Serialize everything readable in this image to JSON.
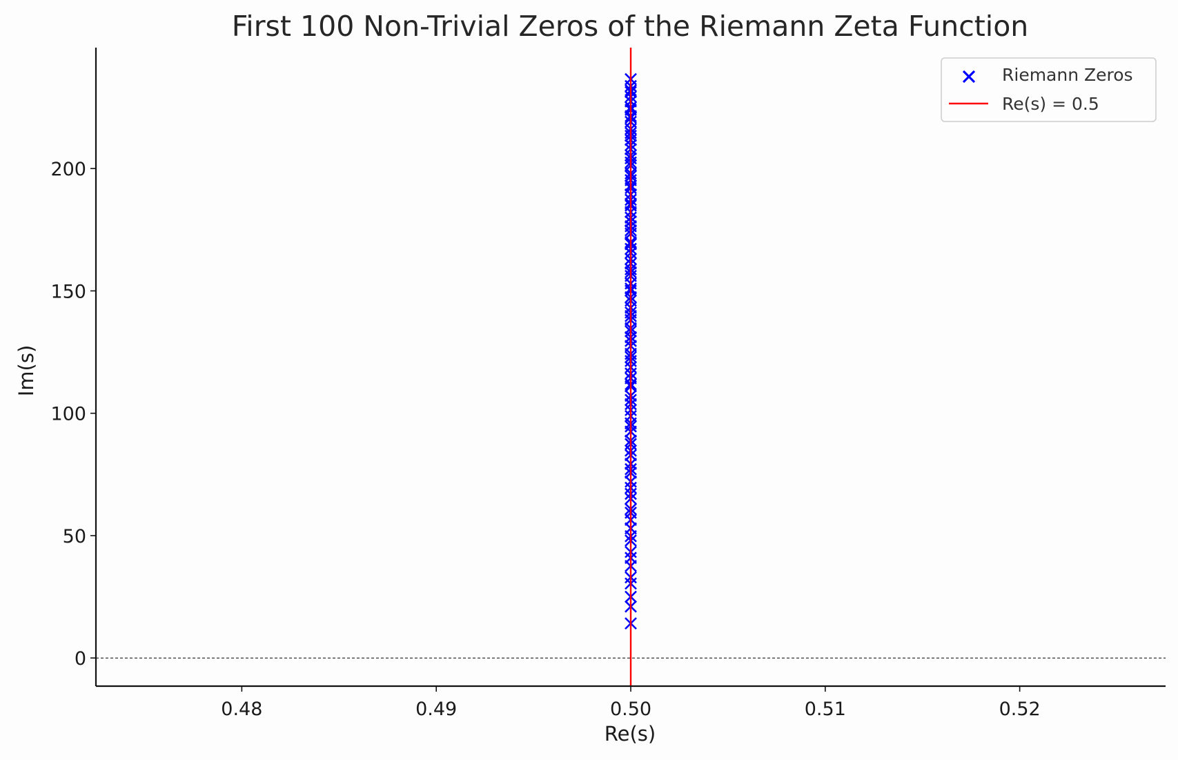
{
  "chart_data": {
    "type": "scatter",
    "title": "First 100 Non-Trivial Zeros of the Riemann Zeta Function",
    "xlabel": "Re(s)",
    "ylabel": "Im(s)",
    "xlim": [
      0.4725,
      0.5275
    ],
    "ylim": [
      -11.5,
      249.4
    ],
    "xticks": [
      0.48,
      0.49,
      0.5,
      0.51,
      0.52
    ],
    "xtick_labels": [
      "0.48",
      "0.49",
      "0.50",
      "0.51",
      "0.52"
    ],
    "yticks": [
      0,
      50,
      100,
      150,
      200
    ],
    "ytick_labels": [
      "0",
      "50",
      "100",
      "150",
      "200"
    ],
    "grid": false,
    "legend_position": "top-right",
    "series": [
      {
        "name": "Riemann Zeros",
        "color": "#0000ff",
        "marker": "x",
        "x_value": 0.5,
        "y": [
          14.135,
          21.022,
          25.011,
          30.425,
          32.935,
          37.586,
          40.919,
          43.327,
          48.005,
          49.774,
          52.97,
          56.446,
          59.347,
          60.832,
          65.113,
          67.08,
          69.546,
          72.067,
          75.705,
          77.145,
          79.337,
          82.91,
          84.735,
          87.425,
          88.809,
          92.492,
          94.651,
          95.871,
          98.831,
          101.318,
          103.726,
          105.447,
          107.169,
          111.03,
          111.875,
          114.32,
          116.227,
          118.791,
          121.37,
          122.947,
          124.257,
          127.517,
          129.579,
          131.088,
          133.498,
          134.757,
          138.116,
          139.736,
          141.124,
          143.112,
          146.001,
          147.423,
          150.054,
          150.925,
          153.025,
          156.113,
          157.598,
          158.85,
          161.189,
          163.031,
          165.537,
          167.184,
          169.095,
          169.912,
          173.412,
          174.754,
          176.441,
          178.377,
          179.916,
          182.207,
          184.874,
          185.599,
          187.229,
          189.416,
          192.027,
          193.08,
          195.265,
          196.876,
          198.015,
          201.265,
          202.494,
          204.19,
          205.395,
          207.906,
          209.577,
          211.691,
          213.348,
          214.547,
          216.17,
          219.068,
          220.715,
          221.431,
          224.007,
          224.983,
          227.421,
          229.337,
          231.251,
          231.987,
          233.693,
          236.524
        ]
      },
      {
        "name": "Re(s) = 0.5",
        "color": "#ff0000",
        "type": "vline",
        "x_value": 0.5
      }
    ],
    "reference_line": {
      "y": 0,
      "style": "dashed",
      "color": "#000000"
    }
  }
}
